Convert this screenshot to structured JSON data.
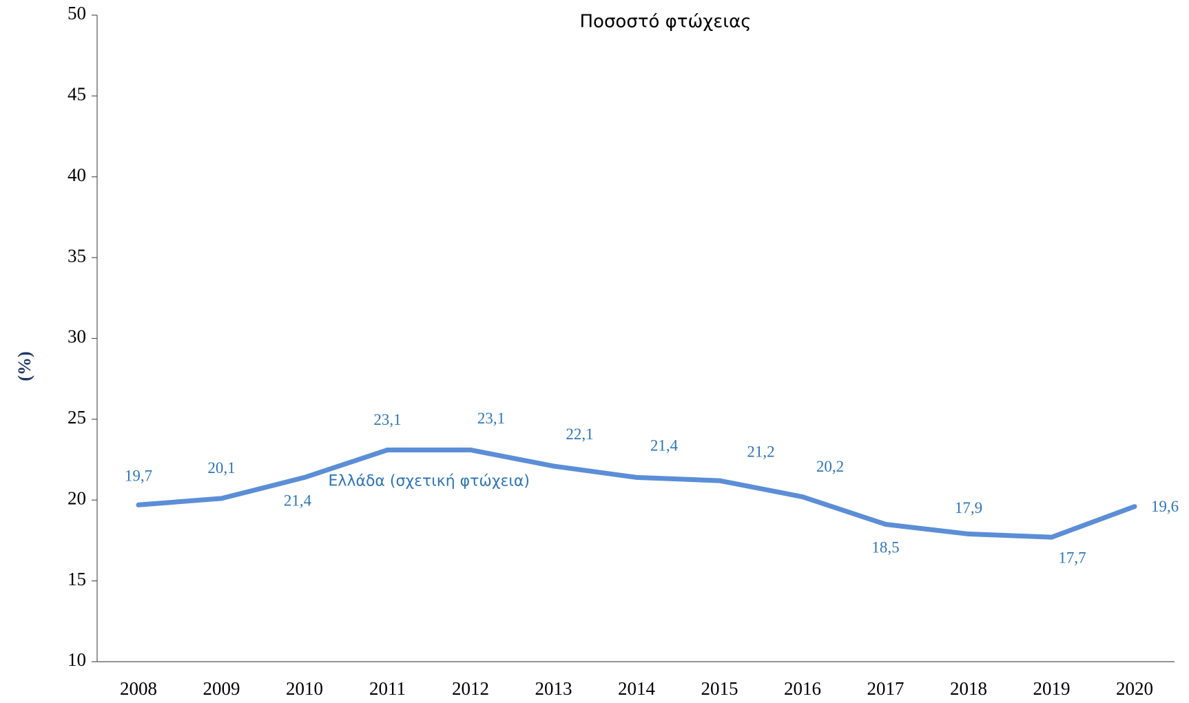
{
  "chart_data": {
    "type": "line",
    "title": "Ποσοστό φτώχειας",
    "y_label": "(%)",
    "categories": [
      "2008",
      "2009",
      "2010",
      "2011",
      "2012",
      "2013",
      "2014",
      "2015",
      "2016",
      "2017",
      "2018",
      "2019",
      "2020"
    ],
    "series": [
      {
        "name": "Ελλάδα (σχετική φτώχεια)",
        "color": "#5b8ed6",
        "values": [
          19.7,
          20.1,
          21.4,
          23.1,
          23.1,
          22.1,
          21.4,
          21.2,
          20.2,
          18.5,
          17.9,
          17.7,
          19.6
        ],
        "value_labels": [
          "19,7",
          "20,1",
          "21,4",
          "23,1",
          "23,1",
          "22,1",
          "21,4",
          "21,2",
          "20,2",
          "18,5",
          "17,9",
          "17,7",
          "19,6"
        ]
      }
    ],
    "ylim": [
      10,
      50
    ],
    "yticks": [
      10,
      15,
      20,
      25,
      30,
      35,
      40,
      45,
      50
    ],
    "label_color": "#2e75b6",
    "y_label_color": "#1f3864"
  }
}
